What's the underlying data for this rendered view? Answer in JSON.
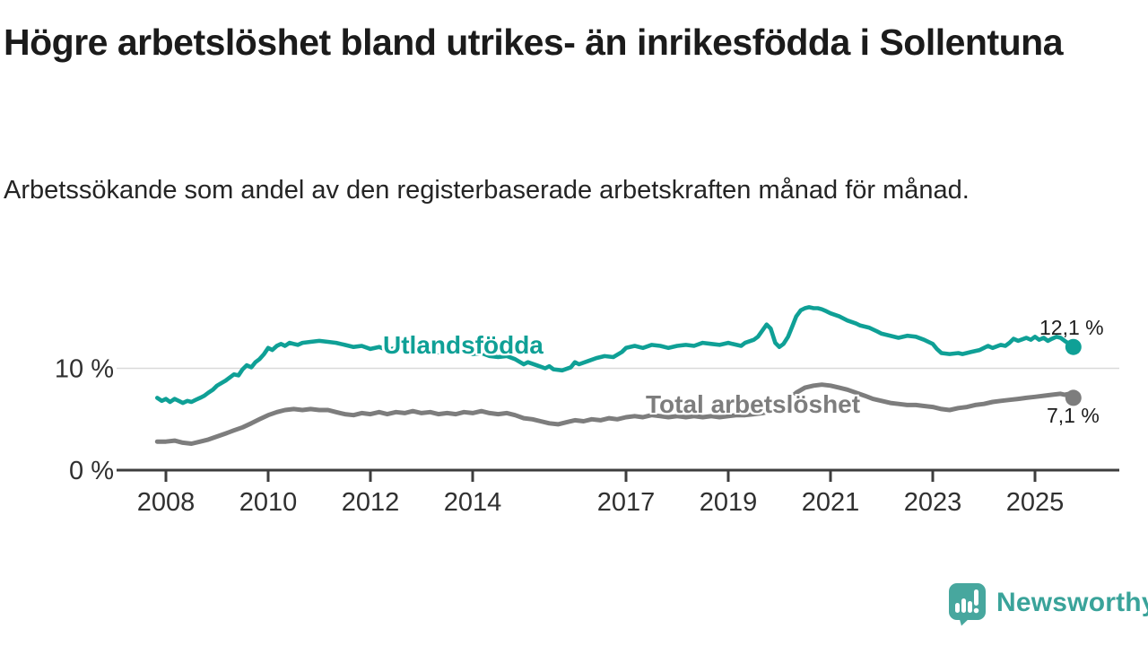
{
  "chart_data": {
    "type": "line",
    "title": "Högre arbetslöshet bland utrikes- än inrikesfödda i Sollentuna",
    "subtitle": "Arbetssökande som andel av den registerbaserade arbetskraften månad för månad.",
    "unit": "%",
    "grid": "horizontal-only",
    "legend_position": "inline-labels-on-lines",
    "xlim": [
      2007.8,
      2026.6
    ],
    "ylim": [
      0,
      17
    ],
    "x_ticks": [
      {
        "year": 2008,
        "label": "2008"
      },
      {
        "year": 2010,
        "label": "2010"
      },
      {
        "year": 2012,
        "label": "2012"
      },
      {
        "year": 2014,
        "label": "2014"
      },
      {
        "year": 2017,
        "label": "2017"
      },
      {
        "year": 2019,
        "label": "2019"
      },
      {
        "year": 2021,
        "label": "2021"
      },
      {
        "year": 2023,
        "label": "2023"
      },
      {
        "year": 2025,
        "label": "2025"
      }
    ],
    "y_ticks": [
      {
        "value": 0,
        "label": "0 %",
        "gridline": false
      },
      {
        "value": 10,
        "label": "10 %",
        "gridline": true
      }
    ],
    "series": [
      {
        "name": "Utlandsfödda",
        "color": "#0fa096",
        "end_label": "12,1 %",
        "end_value": 12.1,
        "points": [
          [
            2007.83,
            7.1
          ],
          [
            2007.92,
            6.8
          ],
          [
            2008.0,
            7.0
          ],
          [
            2008.08,
            6.7
          ],
          [
            2008.17,
            7.0
          ],
          [
            2008.25,
            6.8
          ],
          [
            2008.33,
            6.6
          ],
          [
            2008.42,
            6.8
          ],
          [
            2008.5,
            6.7
          ],
          [
            2008.58,
            6.9
          ],
          [
            2008.67,
            7.1
          ],
          [
            2008.75,
            7.3
          ],
          [
            2008.83,
            7.6
          ],
          [
            2008.92,
            7.9
          ],
          [
            2009.0,
            8.3
          ],
          [
            2009.17,
            8.8
          ],
          [
            2009.33,
            9.4
          ],
          [
            2009.42,
            9.3
          ],
          [
            2009.5,
            9.9
          ],
          [
            2009.58,
            10.3
          ],
          [
            2009.67,
            10.1
          ],
          [
            2009.75,
            10.6
          ],
          [
            2009.83,
            10.9
          ],
          [
            2009.92,
            11.4
          ],
          [
            2010.0,
            12.0
          ],
          [
            2010.08,
            11.8
          ],
          [
            2010.17,
            12.2
          ],
          [
            2010.25,
            12.4
          ],
          [
            2010.33,
            12.2
          ],
          [
            2010.42,
            12.5
          ],
          [
            2010.5,
            12.4
          ],
          [
            2010.58,
            12.3
          ],
          [
            2010.67,
            12.5
          ],
          [
            2010.83,
            12.6
          ],
          [
            2011.0,
            12.7
          ],
          [
            2011.17,
            12.6
          ],
          [
            2011.33,
            12.5
          ],
          [
            2011.5,
            12.3
          ],
          [
            2011.67,
            12.1
          ],
          [
            2011.83,
            12.2
          ],
          [
            2012.0,
            11.9
          ],
          [
            2012.17,
            12.1
          ],
          [
            2012.33,
            11.8
          ],
          [
            2012.5,
            12.0
          ],
          [
            2012.67,
            12.1
          ],
          [
            2012.83,
            11.9
          ],
          [
            2013.0,
            11.8
          ],
          [
            2013.17,
            11.9
          ],
          [
            2013.33,
            11.6
          ],
          [
            2013.5,
            11.8
          ],
          [
            2013.67,
            11.6
          ],
          [
            2013.83,
            11.7
          ],
          [
            2014.0,
            11.4
          ],
          [
            2014.17,
            11.5
          ],
          [
            2014.33,
            11.2
          ],
          [
            2014.5,
            11.1
          ],
          [
            2014.67,
            11.2
          ],
          [
            2014.83,
            10.9
          ],
          [
            2015.0,
            10.4
          ],
          [
            2015.08,
            10.6
          ],
          [
            2015.25,
            10.3
          ],
          [
            2015.42,
            10.0
          ],
          [
            2015.5,
            10.2
          ],
          [
            2015.58,
            9.9
          ],
          [
            2015.75,
            9.8
          ],
          [
            2015.92,
            10.1
          ],
          [
            2016.0,
            10.6
          ],
          [
            2016.08,
            10.4
          ],
          [
            2016.25,
            10.7
          ],
          [
            2016.42,
            11.0
          ],
          [
            2016.58,
            11.2
          ],
          [
            2016.75,
            11.1
          ],
          [
            2016.92,
            11.6
          ],
          [
            2017.0,
            12.0
          ],
          [
            2017.17,
            12.2
          ],
          [
            2017.33,
            12.0
          ],
          [
            2017.5,
            12.3
          ],
          [
            2017.67,
            12.2
          ],
          [
            2017.83,
            12.0
          ],
          [
            2018.0,
            12.2
          ],
          [
            2018.17,
            12.3
          ],
          [
            2018.33,
            12.2
          ],
          [
            2018.5,
            12.5
          ],
          [
            2018.67,
            12.4
          ],
          [
            2018.83,
            12.3
          ],
          [
            2019.0,
            12.5
          ],
          [
            2019.08,
            12.4
          ],
          [
            2019.25,
            12.2
          ],
          [
            2019.33,
            12.5
          ],
          [
            2019.5,
            12.8
          ],
          [
            2019.58,
            13.1
          ],
          [
            2019.75,
            14.3
          ],
          [
            2019.83,
            13.9
          ],
          [
            2019.92,
            12.5
          ],
          [
            2020.0,
            12.1
          ],
          [
            2020.08,
            12.4
          ],
          [
            2020.17,
            13.1
          ],
          [
            2020.25,
            14.1
          ],
          [
            2020.33,
            15.1
          ],
          [
            2020.42,
            15.7
          ],
          [
            2020.5,
            15.9
          ],
          [
            2020.58,
            16.0
          ],
          [
            2020.67,
            15.9
          ],
          [
            2020.75,
            15.9
          ],
          [
            2020.83,
            15.8
          ],
          [
            2020.92,
            15.6
          ],
          [
            2021.0,
            15.4
          ],
          [
            2021.17,
            15.1
          ],
          [
            2021.33,
            14.7
          ],
          [
            2021.5,
            14.4
          ],
          [
            2021.58,
            14.2
          ],
          [
            2021.75,
            14.0
          ],
          [
            2021.92,
            13.6
          ],
          [
            2022.0,
            13.4
          ],
          [
            2022.17,
            13.2
          ],
          [
            2022.33,
            13.0
          ],
          [
            2022.5,
            13.2
          ],
          [
            2022.67,
            13.1
          ],
          [
            2022.83,
            12.8
          ],
          [
            2023.0,
            12.4
          ],
          [
            2023.08,
            11.9
          ],
          [
            2023.17,
            11.5
          ],
          [
            2023.33,
            11.4
          ],
          [
            2023.5,
            11.5
          ],
          [
            2023.58,
            11.4
          ],
          [
            2023.75,
            11.6
          ],
          [
            2023.92,
            11.8
          ],
          [
            2024.0,
            12.0
          ],
          [
            2024.08,
            12.2
          ],
          [
            2024.17,
            12.0
          ],
          [
            2024.33,
            12.3
          ],
          [
            2024.42,
            12.2
          ],
          [
            2024.5,
            12.5
          ],
          [
            2024.58,
            12.9
          ],
          [
            2024.67,
            12.7
          ],
          [
            2024.83,
            13.0
          ],
          [
            2024.92,
            12.8
          ],
          [
            2025.0,
            13.1
          ],
          [
            2025.08,
            12.8
          ],
          [
            2025.17,
            13.0
          ],
          [
            2025.25,
            12.7
          ],
          [
            2025.33,
            12.9
          ],
          [
            2025.42,
            13.1
          ],
          [
            2025.5,
            13.0
          ],
          [
            2025.58,
            12.7
          ],
          [
            2025.67,
            12.4
          ],
          [
            2025.75,
            12.1
          ]
        ]
      },
      {
        "name": "Total arbetslöshet",
        "color": "#7d7d7d",
        "end_label": "7,1 %",
        "end_value": 7.1,
        "points": [
          [
            2007.83,
            2.8
          ],
          [
            2008.0,
            2.8
          ],
          [
            2008.17,
            2.9
          ],
          [
            2008.33,
            2.7
          ],
          [
            2008.5,
            2.6
          ],
          [
            2008.67,
            2.8
          ],
          [
            2008.83,
            3.0
          ],
          [
            2009.0,
            3.3
          ],
          [
            2009.17,
            3.6
          ],
          [
            2009.33,
            3.9
          ],
          [
            2009.5,
            4.2
          ],
          [
            2009.67,
            4.6
          ],
          [
            2009.83,
            5.0
          ],
          [
            2010.0,
            5.4
          ],
          [
            2010.17,
            5.7
          ],
          [
            2010.33,
            5.9
          ],
          [
            2010.5,
            6.0
          ],
          [
            2010.67,
            5.9
          ],
          [
            2010.83,
            6.0
          ],
          [
            2011.0,
            5.9
          ],
          [
            2011.17,
            5.9
          ],
          [
            2011.33,
            5.7
          ],
          [
            2011.5,
            5.5
          ],
          [
            2011.67,
            5.4
          ],
          [
            2011.83,
            5.6
          ],
          [
            2012.0,
            5.5
          ],
          [
            2012.17,
            5.7
          ],
          [
            2012.33,
            5.5
          ],
          [
            2012.5,
            5.7
          ],
          [
            2012.67,
            5.6
          ],
          [
            2012.83,
            5.8
          ],
          [
            2013.0,
            5.6
          ],
          [
            2013.17,
            5.7
          ],
          [
            2013.33,
            5.5
          ],
          [
            2013.5,
            5.6
          ],
          [
            2013.67,
            5.5
          ],
          [
            2013.83,
            5.7
          ],
          [
            2014.0,
            5.6
          ],
          [
            2014.17,
            5.8
          ],
          [
            2014.33,
            5.6
          ],
          [
            2014.5,
            5.5
          ],
          [
            2014.67,
            5.6
          ],
          [
            2014.83,
            5.4
          ],
          [
            2015.0,
            5.1
          ],
          [
            2015.17,
            5.0
          ],
          [
            2015.33,
            4.8
          ],
          [
            2015.5,
            4.6
          ],
          [
            2015.67,
            4.5
          ],
          [
            2015.83,
            4.7
          ],
          [
            2016.0,
            4.9
          ],
          [
            2016.17,
            4.8
          ],
          [
            2016.33,
            5.0
          ],
          [
            2016.5,
            4.9
          ],
          [
            2016.67,
            5.1
          ],
          [
            2016.83,
            5.0
          ],
          [
            2017.0,
            5.2
          ],
          [
            2017.17,
            5.3
          ],
          [
            2017.33,
            5.2
          ],
          [
            2017.5,
            5.4
          ],
          [
            2017.67,
            5.3
          ],
          [
            2017.83,
            5.2
          ],
          [
            2018.0,
            5.3
          ],
          [
            2018.17,
            5.2
          ],
          [
            2018.33,
            5.3
          ],
          [
            2018.5,
            5.2
          ],
          [
            2018.67,
            5.3
          ],
          [
            2018.83,
            5.2
          ],
          [
            2019.0,
            5.3
          ],
          [
            2019.17,
            5.4
          ],
          [
            2019.33,
            5.4
          ],
          [
            2019.5,
            5.5
          ],
          [
            2019.67,
            5.6
          ],
          [
            2019.83,
            5.8
          ],
          [
            2020.0,
            6.2
          ],
          [
            2020.17,
            6.9
          ],
          [
            2020.33,
            7.6
          ],
          [
            2020.5,
            8.1
          ],
          [
            2020.67,
            8.3
          ],
          [
            2020.83,
            8.4
          ],
          [
            2021.0,
            8.3
          ],
          [
            2021.17,
            8.1
          ],
          [
            2021.33,
            7.9
          ],
          [
            2021.5,
            7.6
          ],
          [
            2021.67,
            7.3
          ],
          [
            2021.83,
            7.0
          ],
          [
            2022.0,
            6.8
          ],
          [
            2022.17,
            6.6
          ],
          [
            2022.33,
            6.5
          ],
          [
            2022.5,
            6.4
          ],
          [
            2022.67,
            6.4
          ],
          [
            2022.83,
            6.3
          ],
          [
            2023.0,
            6.2
          ],
          [
            2023.17,
            6.0
          ],
          [
            2023.33,
            5.9
          ],
          [
            2023.5,
            6.1
          ],
          [
            2023.67,
            6.2
          ],
          [
            2023.83,
            6.4
          ],
          [
            2024.0,
            6.5
          ],
          [
            2024.17,
            6.7
          ],
          [
            2024.33,
            6.8
          ],
          [
            2024.5,
            6.9
          ],
          [
            2024.67,
            7.0
          ],
          [
            2024.83,
            7.1
          ],
          [
            2025.0,
            7.2
          ],
          [
            2025.17,
            7.3
          ],
          [
            2025.33,
            7.4
          ],
          [
            2025.5,
            7.5
          ],
          [
            2025.58,
            7.4
          ],
          [
            2025.67,
            7.5
          ],
          [
            2025.75,
            7.1
          ]
        ]
      }
    ]
  },
  "branding": {
    "logo_text": "Newsworthy",
    "logo_text_color": "#3aa39a",
    "logo_icon_color": "#47a79e",
    "logo_icon": "bar-chart-speech-bubble-icon"
  }
}
